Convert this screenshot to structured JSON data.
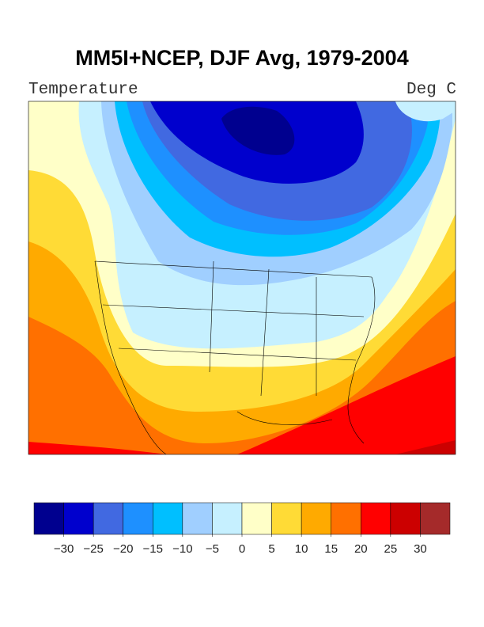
{
  "title": "MM5I+NCEP, DJF Avg, 1979-2004",
  "left_label": "Temperature",
  "right_label": "Deg C",
  "colorbar": {
    "colors": [
      "#00008f",
      "#0000cd",
      "#4169e1",
      "#1e90ff",
      "#00bfff",
      "#a0cfff",
      "#c6f0ff",
      "#ffffc8",
      "#ffdb36",
      "#ffaa00",
      "#ff7000",
      "#ff0000",
      "#cc0000",
      "#a52a2a"
    ],
    "ticks": [
      {
        "value": -30,
        "label": "−30"
      },
      {
        "value": -25,
        "label": "−25"
      },
      {
        "value": -20,
        "label": "−20"
      },
      {
        "value": -15,
        "label": "−15"
      },
      {
        "value": -10,
        "label": "−10"
      },
      {
        "value": -5,
        "label": "−5"
      },
      0,
      5,
      10,
      15,
      20,
      25,
      30
    ]
  }
}
